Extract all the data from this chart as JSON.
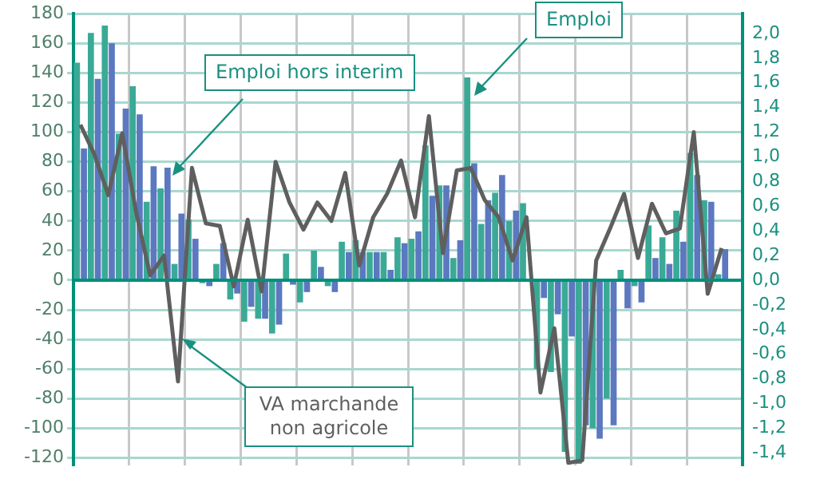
{
  "chart_data": {
    "type": "bar",
    "categories": [
      null,
      null,
      null,
      null,
      null,
      null,
      null,
      null,
      null,
      null,
      null,
      null,
      null,
      null,
      null,
      null,
      null,
      null,
      null,
      null,
      null,
      null,
      null,
      null,
      null,
      null,
      null,
      null,
      null,
      null,
      null,
      null,
      null,
      null,
      null,
      null,
      null,
      null,
      null,
      null,
      null,
      null,
      null,
      null,
      null,
      null,
      null,
      null
    ],
    "series": [
      {
        "name": "Emploi",
        "color": "#3aaa96",
        "values": [
          147,
          167,
          172,
          99,
          131,
          53,
          62,
          11,
          41,
          -2,
          11,
          -13,
          -28,
          -26,
          -36,
          18,
          -15,
          20,
          -4,
          26,
          27,
          19,
          19,
          29,
          28,
          91,
          64,
          15,
          137,
          38,
          59,
          40,
          52,
          -60,
          -62,
          -116,
          -124,
          -100,
          -80,
          7,
          -4,
          37,
          29,
          47,
          86,
          54,
          4,
          null
        ]
      },
      {
        "name": "Emploi hors interim",
        "color": "#5b78c0",
        "values": [
          89,
          136,
          160,
          116,
          112,
          77,
          76,
          45,
          28,
          -4,
          25,
          -9,
          -18,
          -26,
          -30,
          -3,
          -8,
          9,
          -8,
          19,
          19,
          19,
          7,
          25,
          33,
          57,
          64,
          27,
          79,
          54,
          71,
          47,
          null,
          -12,
          -23,
          -38,
          -98,
          -107,
          -98,
          -19,
          -15,
          15,
          11,
          26,
          71,
          53,
          21,
          null
        ]
      },
      {
        "name": "VA marchande non agricole",
        "type": "line",
        "axis": "y2",
        "color": "#5f5f5f",
        "values": [
          1.26,
          1.02,
          0.69,
          1.19,
          0.55,
          0.04,
          0.2,
          -0.82,
          0.91,
          0.46,
          0.44,
          -0.05,
          0.49,
          -0.09,
          0.96,
          0.63,
          0.41,
          0.63,
          0.48,
          0.87,
          0.12,
          0.51,
          0.7,
          0.97,
          0.51,
          1.33,
          0.22,
          0.89,
          0.91,
          0.65,
          0.51,
          0.16,
          0.51,
          -0.91,
          -0.39,
          -1.48,
          -1.46,
          0.16,
          0.42,
          0.7,
          0.18,
          0.62,
          0.38,
          0.42,
          1.2,
          -0.11,
          0.26,
          null
        ]
      }
    ],
    "ylim": [
      -125,
      180
    ],
    "yticks": [
      -120,
      -100,
      -80,
      -60,
      -40,
      -20,
      0,
      20,
      40,
      60,
      80,
      100,
      120,
      140,
      160,
      180
    ],
    "y2lim": [
      -1.5,
      2.16
    ],
    "y2ticks": [
      {
        "value": -1.4,
        "label": "-1,4"
      },
      {
        "value": -1.2,
        "label": "-1,2"
      },
      {
        "value": -1,
        "label": "-1,0"
      },
      {
        "value": -0.8,
        "label": "-0,8"
      },
      {
        "value": -0.6,
        "label": "-0,6"
      },
      {
        "value": -0.4,
        "label": "-0,4"
      },
      {
        "value": -0.2,
        "label": "-0,2"
      },
      {
        "value": 0,
        "label": "0,0"
      },
      {
        "value": 0.2,
        "label": "0,2"
      },
      {
        "value": 0.4,
        "label": "0,4"
      },
      {
        "value": 0.6,
        "label": "0,6"
      },
      {
        "value": 0.8,
        "label": "0,8"
      },
      {
        "value": 1,
        "label": "1,0"
      },
      {
        "value": 1.2,
        "label": "1,2"
      },
      {
        "value": 1.4,
        "label": "1,4"
      },
      {
        "value": 1.6,
        "label": "1,6"
      },
      {
        "value": 1.8,
        "label": "1,8"
      },
      {
        "value": 2,
        "label": "2,0"
      }
    ],
    "ref_lines": [
      {
        "axis": "y",
        "value": 0,
        "color": "#00907a"
      }
    ],
    "grid": true,
    "legend": false,
    "marker": "none",
    "line_style": "solid"
  }
}
